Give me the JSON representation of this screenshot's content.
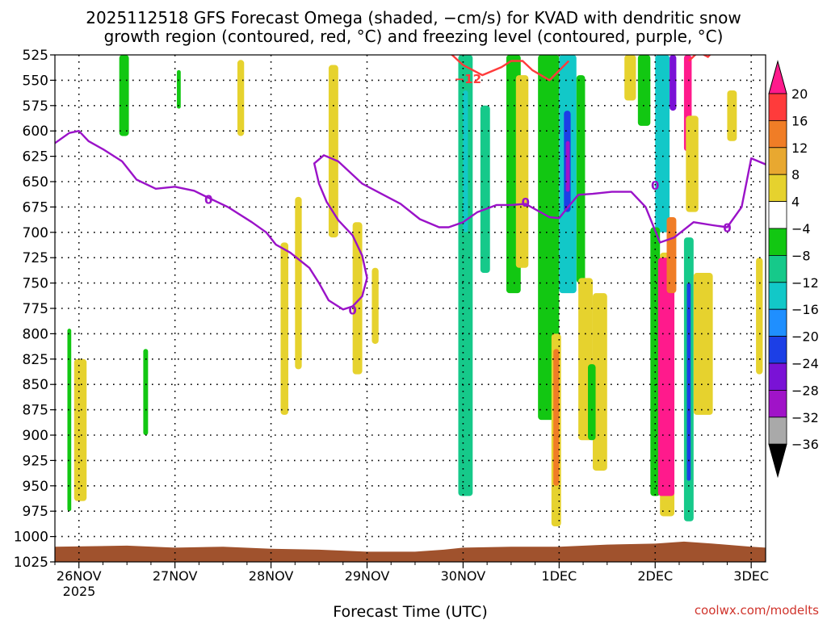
{
  "chart_data": {
    "type": "heatmap",
    "title_lines": [
      "2025112518 GFS Forecast Omega (shaded, −cm/s) for KVAD with dendritic snow",
      "growth region (contoured, red, °C) and freezing level (contoured, purple, °C)"
    ],
    "xlabel": "Forecast Time (UTC)",
    "ylabel": "",
    "year_label": "2025",
    "credit": "coolwx.com/modelts",
    "x_ticks": [
      "26NOV",
      "27NOV",
      "28NOV",
      "29NOV",
      "30NOV",
      "1DEC",
      "2DEC",
      "3DEC"
    ],
    "x_range_days": [
      -0.25,
      7.15
    ],
    "y_ticks": [
      525,
      550,
      575,
      600,
      625,
      650,
      675,
      700,
      725,
      750,
      775,
      800,
      825,
      850,
      875,
      900,
      925,
      950,
      975,
      1000,
      1025
    ],
    "y_range": [
      525,
      1025
    ],
    "grid": true,
    "colorbar": {
      "labels": [
        "20",
        "16",
        "12",
        "8",
        "4",
        "−4",
        "−8",
        "−12",
        "−16",
        "−20",
        "−24",
        "−28",
        "−32",
        "−36"
      ],
      "colors": [
        "#ff1a8c",
        "#ff3b3b",
        "#f07d26",
        "#e8a830",
        "#e6d22e",
        "#ffffff",
        "#12c712",
        "#16c98a",
        "#12c8c8",
        "#1f8fff",
        "#1c3fe6",
        "#7a12d6",
        "#a013c8",
        "#a9a9a9",
        "#000000"
      ]
    },
    "contour_labels": {
      "freezing": "0",
      "dgz": "−12"
    },
    "colors": {
      "freezing_level": "#9a12c8",
      "dgz": "#ff3b3b",
      "terrain": "#a0522d",
      "grid": "#000000"
    },
    "freezing_level": [
      [
        -0.25,
        612
      ],
      [
        -0.1,
        602
      ],
      [
        0.0,
        600
      ],
      [
        0.1,
        610
      ],
      [
        0.25,
        618
      ],
      [
        0.45,
        630
      ],
      [
        0.6,
        648
      ],
      [
        0.8,
        657
      ],
      [
        1.0,
        655
      ],
      [
        1.2,
        659
      ],
      [
        1.35,
        666
      ],
      [
        1.55,
        675
      ],
      [
        1.8,
        690
      ],
      [
        1.95,
        700
      ],
      [
        2.05,
        712
      ],
      [
        2.2,
        720
      ],
      [
        2.4,
        735
      ],
      [
        2.5,
        750
      ],
      [
        2.6,
        767
      ],
      [
        2.75,
        776
      ],
      [
        2.85,
        773
      ],
      [
        2.95,
        763
      ],
      [
        3.0,
        745
      ],
      [
        2.95,
        723
      ],
      [
        2.85,
        703
      ],
      [
        2.7,
        688
      ],
      [
        2.58,
        670
      ],
      [
        2.5,
        652
      ],
      [
        2.45,
        632
      ],
      [
        2.55,
        624
      ],
      [
        2.7,
        630
      ],
      [
        2.95,
        652
      ],
      [
        3.15,
        662
      ],
      [
        3.35,
        672
      ],
      [
        3.55,
        687
      ],
      [
        3.75,
        695
      ],
      [
        3.85,
        695
      ],
      [
        4.0,
        690
      ],
      [
        4.15,
        680
      ],
      [
        4.35,
        673
      ],
      [
        4.5,
        673
      ],
      [
        4.65,
        672
      ],
      [
        4.9,
        685
      ],
      [
        5.0,
        686
      ],
      [
        5.05,
        680
      ],
      [
        5.2,
        663
      ],
      [
        5.35,
        662
      ],
      [
        5.55,
        660
      ],
      [
        5.75,
        660
      ],
      [
        5.9,
        675
      ],
      [
        6.05,
        710
      ],
      [
        6.2,
        705
      ],
      [
        6.4,
        690
      ],
      [
        6.6,
        693
      ],
      [
        6.75,
        695
      ],
      [
        6.9,
        675
      ],
      [
        7.0,
        627
      ],
      [
        7.15,
        633
      ]
    ],
    "dgz_contour": [
      [
        3.85,
        522
      ],
      [
        4.0,
        535
      ],
      [
        4.2,
        545
      ],
      [
        4.4,
        537
      ],
      [
        4.5,
        531
      ],
      [
        4.62,
        531
      ],
      [
        4.72,
        540
      ],
      [
        4.9,
        550
      ],
      [
        5.1,
        531
      ]
    ],
    "dgz_contour_b": [
      [
        6.35,
        531
      ],
      [
        6.45,
        522
      ],
      [
        6.55,
        527
      ],
      [
        6.6,
        522
      ]
    ],
    "shading_regions": [
      {
        "value": -6,
        "x0": -0.12,
        "x1": -0.08,
        "p0": 795,
        "p1": 975
      },
      {
        "value": 6,
        "x0": -0.05,
        "x1": 0.08,
        "p0": 825,
        "p1": 965
      },
      {
        "value": -6,
        "x0": 0.42,
        "x1": 0.52,
        "p0": 525,
        "p1": 605
      },
      {
        "value": -6,
        "x0": 0.67,
        "x1": 0.72,
        "p0": 815,
        "p1": 900
      },
      {
        "value": -6,
        "x0": 1.02,
        "x1": 1.06,
        "p0": 540,
        "p1": 578
      },
      {
        "value": 6,
        "x0": 1.65,
        "x1": 1.72,
        "p0": 530,
        "p1": 605
      },
      {
        "value": 6,
        "x0": 2.1,
        "x1": 2.18,
        "p0": 710,
        "p1": 880
      },
      {
        "value": 6,
        "x0": 2.25,
        "x1": 2.32,
        "p0": 665,
        "p1": 835
      },
      {
        "value": 6,
        "x0": 2.6,
        "x1": 2.7,
        "p0": 535,
        "p1": 705
      },
      {
        "value": 6,
        "x0": 2.85,
        "x1": 2.95,
        "p0": 690,
        "p1": 840
      },
      {
        "value": 6,
        "x0": 3.05,
        "x1": 3.12,
        "p0": 735,
        "p1": 810
      },
      {
        "value": -8,
        "x0": 3.95,
        "x1": 4.1,
        "p0": 525,
        "p1": 960
      },
      {
        "value": -14,
        "x0": 4.0,
        "x1": 4.05,
        "p0": 560,
        "p1": 700
      },
      {
        "value": -8,
        "x0": 4.18,
        "x1": 4.28,
        "p0": 575,
        "p1": 740
      },
      {
        "value": -6,
        "x0": 4.45,
        "x1": 4.6,
        "p0": 525,
        "p1": 760
      },
      {
        "value": 6,
        "x0": 4.55,
        "x1": 4.68,
        "p0": 545,
        "p1": 735
      },
      {
        "value": -6,
        "x0": 4.78,
        "x1": 5.0,
        "p0": 525,
        "p1": 885
      },
      {
        "value": 6,
        "x0": 4.92,
        "x1": 5.02,
        "p0": 800,
        "p1": 990
      },
      {
        "value": 14,
        "x0": 4.94,
        "x1": 5.0,
        "p0": 815,
        "p1": 950
      },
      {
        "value": -14,
        "x0": 5.0,
        "x1": 5.18,
        "p0": 525,
        "p1": 760
      },
      {
        "value": -22,
        "x0": 5.05,
        "x1": 5.12,
        "p0": 580,
        "p1": 680
      },
      {
        "value": -30,
        "x0": 5.07,
        "x1": 5.11,
        "p0": 610,
        "p1": 660
      },
      {
        "value": -6,
        "x0": 5.18,
        "x1": 5.27,
        "p0": 545,
        "p1": 750
      },
      {
        "value": 6,
        "x0": 5.2,
        "x1": 5.35,
        "p0": 745,
        "p1": 905
      },
      {
        "value": 6,
        "x0": 5.35,
        "x1": 5.5,
        "p0": 760,
        "p1": 935
      },
      {
        "value": -6,
        "x0": 5.3,
        "x1": 5.38,
        "p0": 830,
        "p1": 905
      },
      {
        "value": 6,
        "x0": 5.68,
        "x1": 5.8,
        "p0": 525,
        "p1": 570
      },
      {
        "value": -6,
        "x0": 5.82,
        "x1": 5.95,
        "p0": 525,
        "p1": 595
      },
      {
        "value": -14,
        "x0": 6.0,
        "x1": 6.15,
        "p0": 525,
        "p1": 700
      },
      {
        "value": -26,
        "x0": 6.15,
        "x1": 6.22,
        "p0": 525,
        "p1": 580
      },
      {
        "value": -6,
        "x0": 5.95,
        "x1": 6.05,
        "p0": 695,
        "p1": 960
      },
      {
        "value": 6,
        "x0": 6.05,
        "x1": 6.2,
        "p0": 720,
        "p1": 980
      },
      {
        "value": 20,
        "x0": 6.03,
        "x1": 6.2,
        "p0": 725,
        "p1": 960
      },
      {
        "value": 12,
        "x0": 6.12,
        "x1": 6.22,
        "p0": 685,
        "p1": 760
      },
      {
        "value": 20,
        "x0": 6.3,
        "x1": 6.38,
        "p0": 525,
        "p1": 620
      },
      {
        "value": 6,
        "x0": 6.32,
        "x1": 6.45,
        "p0": 585,
        "p1": 680
      },
      {
        "value": -8,
        "x0": 6.3,
        "x1": 6.4,
        "p0": 705,
        "p1": 985
      },
      {
        "value": -22,
        "x0": 6.33,
        "x1": 6.37,
        "p0": 750,
        "p1": 945
      },
      {
        "value": 6,
        "x0": 6.4,
        "x1": 6.6,
        "p0": 740,
        "p1": 880
      },
      {
        "value": 6,
        "x0": 6.75,
        "x1": 6.85,
        "p0": 560,
        "p1": 610
      },
      {
        "value": 6,
        "x0": 7.05,
        "x1": 7.12,
        "p0": 725,
        "p1": 840
      }
    ],
    "terrain_profile": [
      [
        -0.25,
        1010
      ],
      [
        0.5,
        1009
      ],
      [
        1.0,
        1011
      ],
      [
        1.5,
        1010
      ],
      [
        2.0,
        1012
      ],
      [
        2.5,
        1013
      ],
      [
        3.0,
        1015
      ],
      [
        3.5,
        1015
      ],
      [
        3.8,
        1013
      ],
      [
        4.0,
        1011
      ],
      [
        4.5,
        1010
      ],
      [
        5.0,
        1010
      ],
      [
        5.5,
        1008
      ],
      [
        6.0,
        1007
      ],
      [
        6.3,
        1005
      ],
      [
        6.6,
        1007
      ],
      [
        7.0,
        1010
      ],
      [
        7.15,
        1011
      ]
    ]
  }
}
